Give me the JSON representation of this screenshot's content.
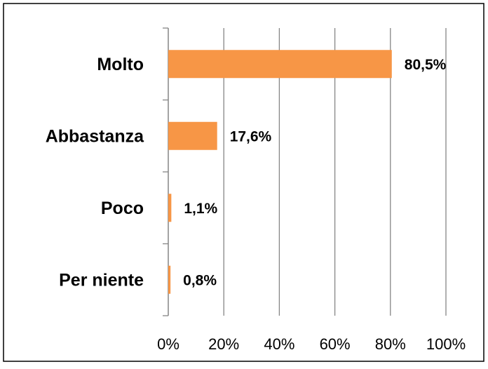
{
  "chart_data": {
    "type": "hbar",
    "categories": [
      "Molto",
      "Abbastanza",
      "Poco",
      "Per niente"
    ],
    "values": [
      80.5,
      17.6,
      1.1,
      0.8
    ],
    "value_labels": [
      "80,5%",
      "17,6%",
      "1,1%",
      "0,8%"
    ],
    "color": "#f79646",
    "xlim": [
      0,
      100
    ],
    "xticks": [
      {
        "value": 0,
        "label": "0%"
      },
      {
        "value": 20,
        "label": "20%"
      },
      {
        "value": 40,
        "label": "40%"
      },
      {
        "value": 60,
        "label": "60%"
      },
      {
        "value": 80,
        "label": "80%"
      },
      {
        "value": 100,
        "label": "100%"
      }
    ],
    "grid": true
  }
}
